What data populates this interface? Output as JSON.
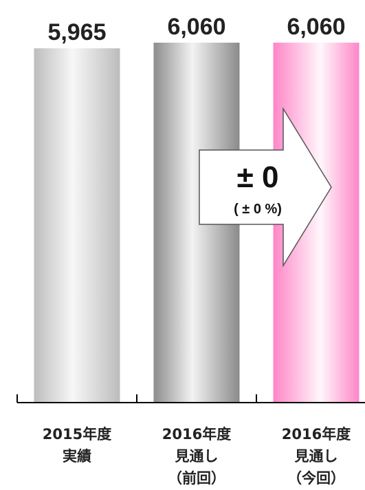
{
  "chart_data": {
    "type": "bar",
    "categories": [
      [
        "2015年度",
        "実績"
      ],
      [
        "2016年度",
        "見通し",
        "（前回）"
      ],
      [
        "2016年度",
        "見通し",
        "（今回）"
      ]
    ],
    "values": [
      5965,
      6060,
      6060
    ],
    "value_labels": [
      "5,965",
      "6,060",
      "6,060"
    ],
    "bar_styles": [
      "light-gray-gradient",
      "dark-gray-gradient",
      "pink-gradient"
    ],
    "colors": {
      "gray_light": "#c6c6c6",
      "gray_dark": "#8f8f8f",
      "pink": "#ff8fcc",
      "axis": "#000000"
    },
    "annotation": {
      "main": "± 0",
      "sub": "( ± 0 %)"
    },
    "title": "",
    "xlabel": "",
    "ylabel": "",
    "grid": false,
    "legend": "none"
  }
}
